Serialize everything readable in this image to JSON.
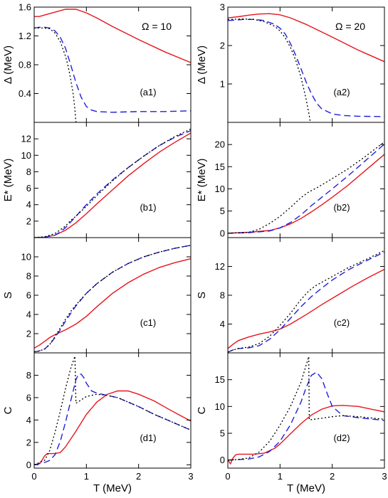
{
  "colors": {
    "solid": "#e8141c",
    "dashed": "#2020d8",
    "dotted": "#000000"
  },
  "chart_data": [
    {
      "type": "line",
      "column": 0,
      "row": 0,
      "panel_label": "(a1)",
      "annotation": "Ω = 10",
      "xlabel": "",
      "ylabel": "Δ (MeV)",
      "xlim": [
        0,
        3
      ],
      "ylim": [
        0,
        1.6
      ],
      "xticks": [
        0,
        1,
        2,
        3
      ],
      "yticks": [
        0.4,
        0.8,
        1.2,
        1.6
      ],
      "series": [
        {
          "style": "solid",
          "x": [
            0,
            0.1,
            0.2,
            0.4,
            0.6,
            0.8,
            1.0,
            1.2,
            1.5,
            2.0,
            2.5,
            3.0
          ],
          "y": [
            1.47,
            1.47,
            1.49,
            1.53,
            1.57,
            1.57,
            1.52,
            1.45,
            1.33,
            1.15,
            0.98,
            0.83
          ]
        },
        {
          "style": "dashed",
          "x": [
            0,
            0.1,
            0.2,
            0.3,
            0.4,
            0.5,
            0.6,
            0.7,
            0.8,
            0.9,
            1.0,
            1.1,
            1.2,
            1.5,
            2.0,
            2.5,
            3.0
          ],
          "y": [
            1.31,
            1.32,
            1.32,
            1.31,
            1.27,
            1.18,
            1.03,
            0.8,
            0.55,
            0.35,
            0.22,
            0.17,
            0.15,
            0.14,
            0.15,
            0.15,
            0.16
          ]
        },
        {
          "style": "dotted",
          "x": [
            0,
            0.2,
            0.3,
            0.4,
            0.5,
            0.6,
            0.65,
            0.7,
            0.75,
            0.78,
            0.8
          ],
          "y": [
            1.31,
            1.31,
            1.3,
            1.24,
            1.12,
            0.92,
            0.78,
            0.6,
            0.38,
            0.18,
            0.0
          ]
        }
      ]
    },
    {
      "type": "line",
      "column": 1,
      "row": 0,
      "panel_label": "(a2)",
      "annotation": "Ω = 20",
      "xlabel": "",
      "ylabel": "Δ (MeV)",
      "xlim": [
        0,
        3
      ],
      "ylim": [
        0,
        3
      ],
      "xticks": [
        0,
        1,
        2,
        3
      ],
      "yticks": [
        1,
        2,
        3
      ],
      "series": [
        {
          "style": "solid",
          "x": [
            0,
            0.2,
            0.4,
            0.6,
            0.8,
            1.0,
            1.2,
            1.5,
            2.0,
            2.5,
            3.0
          ],
          "y": [
            2.72,
            2.75,
            2.79,
            2.82,
            2.83,
            2.8,
            2.72,
            2.55,
            2.22,
            1.88,
            1.58
          ]
        },
        {
          "style": "dashed",
          "x": [
            0,
            0.3,
            0.5,
            0.7,
            0.9,
            1.0,
            1.1,
            1.2,
            1.3,
            1.4,
            1.5,
            1.6,
            1.7,
            1.8,
            2.0,
            2.2,
            2.5,
            3.0
          ],
          "y": [
            2.65,
            2.68,
            2.68,
            2.65,
            2.55,
            2.45,
            2.3,
            2.05,
            1.75,
            1.4,
            1.05,
            0.75,
            0.5,
            0.35,
            0.22,
            0.18,
            0.16,
            0.15
          ]
        },
        {
          "style": "dotted",
          "x": [
            0,
            0.3,
            0.5,
            0.7,
            0.9,
            1.0,
            1.1,
            1.2,
            1.3,
            1.4,
            1.45,
            1.5,
            1.55,
            1.58
          ],
          "y": [
            2.68,
            2.69,
            2.68,
            2.62,
            2.5,
            2.38,
            2.2,
            1.95,
            1.62,
            1.18,
            0.9,
            0.6,
            0.25,
            0.0
          ]
        }
      ]
    },
    {
      "type": "line",
      "column": 0,
      "row": 1,
      "panel_label": "(b1)",
      "annotation": "",
      "xlabel": "",
      "ylabel": "E* (MeV)",
      "xlim": [
        0,
        3
      ],
      "ylim": [
        0,
        14
      ],
      "xticks": [
        0,
        1,
        2,
        3
      ],
      "yticks": [
        2,
        4,
        6,
        8,
        10,
        12
      ],
      "series": [
        {
          "style": "solid",
          "x": [
            0,
            0.2,
            0.4,
            0.6,
            0.8,
            1.0,
            1.2,
            1.5,
            1.8,
            2.1,
            2.4,
            2.7,
            3.0
          ],
          "y": [
            0,
            0.05,
            0.3,
            0.9,
            1.8,
            2.9,
            4.1,
            5.8,
            7.5,
            9.0,
            10.4,
            11.6,
            12.7
          ]
        },
        {
          "style": "dashed",
          "x": [
            0,
            0.2,
            0.4,
            0.5,
            0.6,
            0.8,
            1.0,
            1.2,
            1.5,
            1.8,
            2.1,
            2.4,
            2.7,
            3.0
          ],
          "y": [
            0,
            0.05,
            0.3,
            0.7,
            1.2,
            2.6,
            4.0,
            5.3,
            7.0,
            8.5,
            9.9,
            11.2,
            12.2,
            13.0
          ]
        },
        {
          "style": "dotted",
          "x": [
            0,
            0.2,
            0.4,
            0.6,
            0.7,
            0.8,
            1.0,
            1.2,
            1.5,
            1.8,
            2.1,
            2.4,
            2.7,
            3.0
          ],
          "y": [
            0,
            0.1,
            0.5,
            1.4,
            2.1,
            2.6,
            3.8,
            5.1,
            6.9,
            8.5,
            9.9,
            11.2,
            12.3,
            13.2
          ]
        }
      ]
    },
    {
      "type": "line",
      "column": 1,
      "row": 1,
      "panel_label": "(b2)",
      "annotation": "",
      "xlabel": "",
      "ylabel": "E* (MeV)",
      "xlim": [
        0,
        3
      ],
      "ylim": [
        -1,
        25
      ],
      "xticks": [
        0,
        1,
        2,
        3
      ],
      "yticks": [
        0,
        5,
        10,
        15,
        20
      ],
      "series": [
        {
          "style": "solid",
          "x": [
            0,
            0.4,
            0.8,
            1.0,
            1.2,
            1.4,
            1.6,
            1.8,
            2.0,
            2.3,
            2.6,
            3.0
          ],
          "y": [
            0,
            0.2,
            0.6,
            1.2,
            2.1,
            3.3,
            4.8,
            6.4,
            8.1,
            10.8,
            13.8,
            17.8
          ]
        },
        {
          "style": "dashed",
          "x": [
            0,
            0.4,
            0.8,
            1.0,
            1.2,
            1.4,
            1.6,
            1.8,
            2.0,
            2.3,
            2.6,
            3.0
          ],
          "y": [
            0,
            0.1,
            0.5,
            1.2,
            2.4,
            4.1,
            6.2,
            8.1,
            10.0,
            12.9,
            16.0,
            20.1
          ]
        },
        {
          "style": "dotted",
          "x": [
            0,
            0.4,
            0.6,
            0.8,
            1.0,
            1.2,
            1.4,
            1.55,
            1.7,
            2.0,
            2.3,
            2.6,
            3.0
          ],
          "y": [
            0,
            0.2,
            0.9,
            2.2,
            3.8,
            5.8,
            8.0,
            9.3,
            10.2,
            12.3,
            14.5,
            17.0,
            20.6
          ]
        }
      ]
    },
    {
      "type": "line",
      "column": 0,
      "row": 2,
      "panel_label": "(c1)",
      "annotation": "",
      "xlabel": "",
      "ylabel": "S",
      "xlim": [
        0,
        3
      ],
      "ylim": [
        0,
        12
      ],
      "xticks": [
        0,
        1,
        2,
        3
      ],
      "yticks": [
        2,
        4,
        6,
        8,
        10
      ],
      "series": [
        {
          "style": "solid",
          "x": [
            0,
            0.1,
            0.2,
            0.3,
            0.4,
            0.6,
            0.8,
            1.0,
            1.2,
            1.5,
            1.8,
            2.1,
            2.4,
            2.7,
            3.0
          ],
          "y": [
            0.5,
            0.8,
            1.2,
            1.6,
            1.9,
            2.4,
            3.0,
            3.8,
            4.8,
            6.2,
            7.3,
            8.2,
            8.9,
            9.4,
            9.8
          ]
        },
        {
          "style": "dashed",
          "x": [
            0,
            0.1,
            0.2,
            0.3,
            0.4,
            0.5,
            0.6,
            0.7,
            0.8,
            1.0,
            1.2,
            1.5,
            1.8,
            2.1,
            2.4,
            2.7,
            3.0
          ],
          "y": [
            0.1,
            0.2,
            0.4,
            0.9,
            1.6,
            2.4,
            3.3,
            4.1,
            4.9,
            6.2,
            7.2,
            8.4,
            9.3,
            10.0,
            10.5,
            10.9,
            11.2
          ]
        },
        {
          "style": "dotted",
          "x": [
            0,
            0.1,
            0.2,
            0.3,
            0.4,
            0.5,
            0.6,
            0.7,
            0.8,
            1.0,
            1.2,
            1.5,
            1.8,
            2.1,
            2.4,
            2.7,
            3.0
          ],
          "y": [
            0.1,
            0.2,
            0.4,
            0.9,
            1.7,
            2.6,
            3.5,
            4.3,
            5.0,
            6.2,
            7.2,
            8.4,
            9.3,
            10.0,
            10.5,
            10.9,
            11.2
          ]
        }
      ]
    },
    {
      "type": "line",
      "column": 1,
      "row": 2,
      "panel_label": "(c2)",
      "annotation": "",
      "xlabel": "",
      "ylabel": "S",
      "xlim": [
        0,
        3
      ],
      "ylim": [
        0,
        16
      ],
      "xticks": [
        0,
        1,
        2,
        3
      ],
      "yticks": [
        4,
        8,
        12
      ],
      "series": [
        {
          "style": "solid",
          "x": [
            0,
            0.1,
            0.2,
            0.4,
            0.6,
            0.8,
            1.0,
            1.2,
            1.5,
            1.8,
            2.1,
            2.4,
            2.7,
            3.0
          ],
          "y": [
            0.6,
            1.2,
            1.7,
            2.2,
            2.6,
            2.9,
            3.3,
            4.0,
            5.3,
            6.7,
            8.0,
            9.3,
            10.5,
            11.6
          ]
        },
        {
          "style": "dashed",
          "x": [
            0,
            0.1,
            0.2,
            0.4,
            0.6,
            0.8,
            1.0,
            1.2,
            1.4,
            1.6,
            1.8,
            2.0,
            2.3,
            2.6,
            3.0
          ],
          "y": [
            0.1,
            0.4,
            0.6,
            0.7,
            1.0,
            1.9,
            3.2,
            4.8,
            6.4,
            7.8,
            9.0,
            10.1,
            11.5,
            12.6,
            14.0
          ]
        },
        {
          "style": "dotted",
          "x": [
            0,
            0.1,
            0.2,
            0.4,
            0.6,
            0.8,
            1.0,
            1.2,
            1.4,
            1.55,
            1.7,
            2.0,
            2.3,
            2.6,
            3.0
          ],
          "y": [
            0.1,
            0.4,
            0.6,
            0.8,
            1.3,
            2.3,
            3.8,
            5.5,
            7.4,
            8.6,
            9.4,
            10.6,
            11.8,
            12.8,
            14.2
          ]
        }
      ]
    },
    {
      "type": "line",
      "column": 0,
      "row": 3,
      "panel_label": "(d1)",
      "annotation": "",
      "xlabel": "T (MeV)",
      "ylabel": "C",
      "xlim": [
        0,
        3
      ],
      "ylim": [
        -0.3,
        10
      ],
      "xticks": [
        0,
        1,
        2,
        3
      ],
      "yticks": [
        0,
        2,
        4,
        6,
        8
      ],
      "series": [
        {
          "style": "solid",
          "x": [
            0,
            0.1,
            0.15,
            0.2,
            0.25,
            0.3,
            0.4,
            0.5,
            0.6,
            0.8,
            1.0,
            1.2,
            1.4,
            1.6,
            1.8,
            2.0,
            2.3,
            2.6,
            3.0
          ],
          "y": [
            0,
            0.1,
            0.4,
            0.8,
            1.0,
            1.0,
            1.0,
            1.1,
            1.6,
            3.0,
            4.5,
            5.6,
            6.3,
            6.6,
            6.6,
            6.3,
            5.7,
            4.9,
            3.9
          ]
        },
        {
          "style": "dashed",
          "x": [
            0,
            0.2,
            0.3,
            0.4,
            0.5,
            0.6,
            0.7,
            0.8,
            0.85,
            0.9,
            0.95,
            1.0,
            1.1,
            1.2,
            1.4,
            1.6,
            1.8,
            2.0,
            2.3,
            2.6,
            3.0
          ],
          "y": [
            0,
            0.2,
            0.4,
            0.9,
            2.1,
            3.8,
            5.7,
            7.6,
            8.1,
            8.1,
            7.8,
            7.3,
            6.6,
            6.4,
            6.2,
            6.0,
            5.6,
            5.2,
            4.5,
            3.9,
            3.1
          ]
        },
        {
          "style": "dotted",
          "x": [
            0,
            0.2,
            0.3,
            0.4,
            0.5,
            0.6,
            0.7,
            0.78,
            0.8,
            0.9,
            1.0,
            1.2,
            1.4,
            1.6,
            1.8,
            2.0,
            2.3,
            2.6,
            3.0
          ],
          "y": [
            0,
            0.4,
            1.3,
            2.9,
            4.8,
            6.8,
            8.6,
            9.7,
            5.5,
            5.8,
            6.1,
            6.3,
            6.2,
            6.0,
            5.6,
            5.2,
            4.5,
            3.9,
            3.1
          ]
        }
      ]
    },
    {
      "type": "line",
      "column": 1,
      "row": 3,
      "panel_label": "(d2)",
      "annotation": "",
      "xlabel": "T (MeV)",
      "ylabel": "C",
      "xlim": [
        0,
        3
      ],
      "ylim": [
        -1.5,
        20
      ],
      "xticks": [
        0,
        1,
        2,
        3
      ],
      "yticks": [
        0,
        5,
        10,
        15
      ],
      "series": [
        {
          "style": "solid",
          "x": [
            0,
            0.05,
            0.1,
            0.15,
            0.2,
            0.3,
            0.5,
            0.7,
            0.9,
            1.0,
            1.2,
            1.4,
            1.6,
            1.8,
            2.0,
            2.2,
            2.5,
            2.8,
            3.0
          ],
          "y": [
            0,
            -0.7,
            0.4,
            1.0,
            1.1,
            1.1,
            1.1,
            1.3,
            2.2,
            3.0,
            4.9,
            6.8,
            8.4,
            9.5,
            10.1,
            10.2,
            10.0,
            9.4,
            9.0
          ]
        },
        {
          "style": "dashed",
          "x": [
            0,
            0.2,
            0.4,
            0.6,
            0.8,
            1.0,
            1.2,
            1.4,
            1.5,
            1.6,
            1.7,
            1.8,
            1.9,
            2.0,
            2.2,
            2.5,
            2.8,
            3.0
          ],
          "y": [
            0,
            0.1,
            0.2,
            0.6,
            1.6,
            3.5,
            6.6,
            10.8,
            13.5,
            15.8,
            16.4,
            15.2,
            12.5,
            10.0,
            8.3,
            7.9,
            7.6,
            7.4
          ]
        },
        {
          "style": "dotted",
          "x": [
            0,
            0.2,
            0.4,
            0.6,
            0.8,
            1.0,
            1.2,
            1.4,
            1.55,
            1.56,
            1.8,
            2.0,
            2.2,
            2.5,
            2.8,
            3.0
          ],
          "y": [
            0,
            0.1,
            0.4,
            1.5,
            3.5,
            6.5,
            10.0,
            14.5,
            19.3,
            7.5,
            7.8,
            8.1,
            8.3,
            8.1,
            7.8,
            7.6
          ]
        }
      ]
    }
  ]
}
